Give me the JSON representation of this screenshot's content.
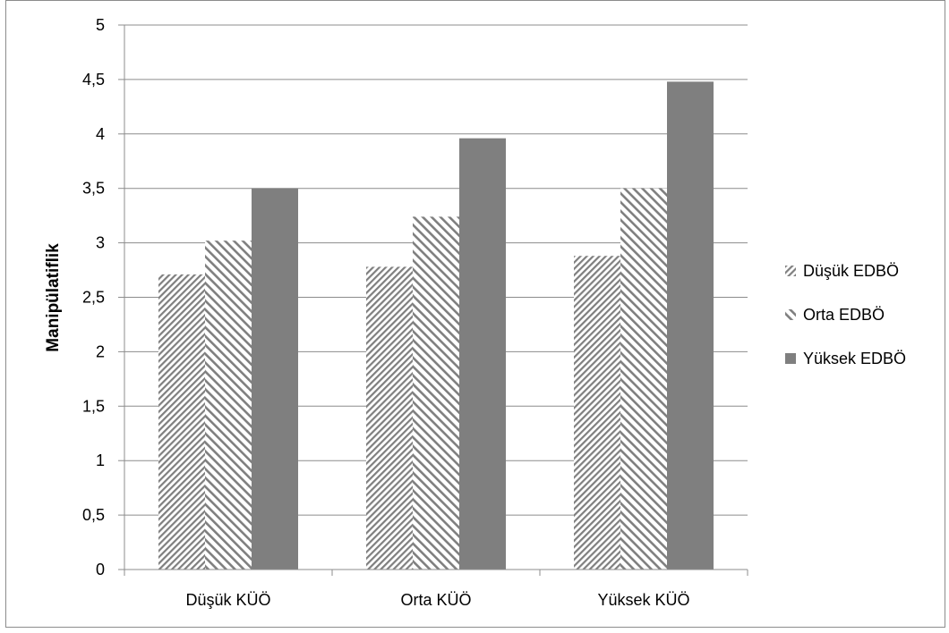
{
  "chart_data": {
    "type": "bar",
    "title": "",
    "xlabel": "",
    "ylabel": "Manipülatiflik",
    "categories": [
      "Düşük KÜÖ",
      "Orta KÜÖ",
      "Yüksek KÜÖ"
    ],
    "series": [
      {
        "name": "Düşük EDBÖ",
        "values": [
          2.71,
          2.78,
          2.88
        ],
        "fill": "hatch-dense",
        "color": "#7f7f7f"
      },
      {
        "name": "Orta EDBÖ",
        "values": [
          3.02,
          3.24,
          3.5
        ],
        "fill": "hatch-wide",
        "color": "#7f7f7f"
      },
      {
        "name": "Yüksek EDBÖ",
        "values": [
          3.5,
          3.96,
          4.48
        ],
        "fill": "solid",
        "color": "#7f7f7f"
      }
    ],
    "ylim": [
      0,
      5
    ],
    "yticks": [
      0,
      0.5,
      1,
      1.5,
      2,
      2.5,
      3,
      3.5,
      4,
      4.5,
      5
    ],
    "ytick_labels": [
      "0",
      "0,5",
      "1",
      "1,5",
      "2",
      "2,5",
      "3",
      "3,5",
      "4",
      "4,5",
      "5"
    ],
    "grid": true,
    "legend_position": "right"
  }
}
